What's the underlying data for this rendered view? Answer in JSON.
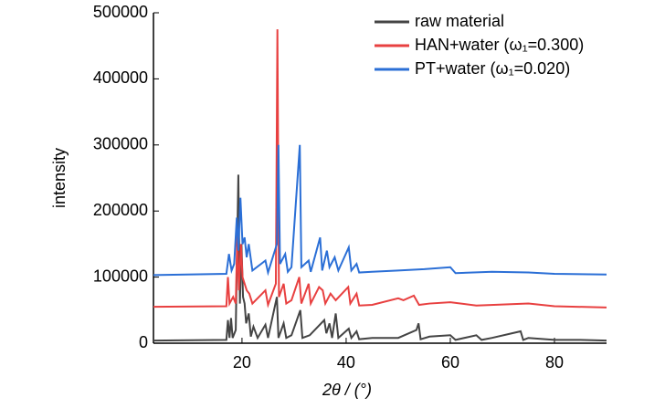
{
  "chart_data": {
    "type": "line",
    "xlabel": "2θ / (°)",
    "ylabel": "intensity",
    "xlim": [
      3,
      90
    ],
    "ylim": [
      0,
      500000
    ],
    "xticks": [
      20,
      40,
      60,
      80
    ],
    "yticks": [
      0,
      100000,
      200000,
      300000,
      400000,
      500000
    ],
    "legend": "upper right",
    "series": [
      {
        "name": "raw material",
        "color": "#444444",
        "x": [
          3,
          10,
          17,
          17.3,
          17.6,
          17.9,
          18.2,
          18.8,
          19.3,
          19.6,
          19.9,
          20.2,
          20.5,
          20.8,
          21.3,
          21.7,
          22.2,
          23,
          24.5,
          25,
          26.7,
          27,
          28,
          28.5,
          29.5,
          31.2,
          31.6,
          33,
          35.8,
          36.2,
          36.8,
          37.3,
          38,
          38.5,
          40.5,
          41,
          42,
          42.5,
          45,
          50,
          53.5,
          53.9,
          54.3,
          56,
          60,
          61,
          65,
          66,
          68,
          73.5,
          74,
          75,
          80,
          85,
          90
        ],
        "values": [
          4000,
          4500,
          5000,
          35000,
          8000,
          38000,
          8000,
          20000,
          255000,
          60000,
          150000,
          70000,
          60000,
          30000,
          45000,
          10000,
          25000,
          8000,
          28000,
          8000,
          70000,
          8000,
          30000,
          8000,
          12000,
          50000,
          8000,
          12000,
          35000,
          15000,
          30000,
          8000,
          45000,
          8000,
          22000,
          8000,
          18000,
          6000,
          8000,
          8000,
          20000,
          30000,
          6000,
          10000,
          12000,
          5000,
          12000,
          5000,
          8000,
          18000,
          5000,
          8000,
          5000,
          5000,
          4000
        ]
      },
      {
        "name": "HAN+water (ω₁=0.300)",
        "color": "#e84040",
        "x": [
          3,
          17,
          17.3,
          17.6,
          18.3,
          18.8,
          19.1,
          19.4,
          19.8,
          20.1,
          20.5,
          20.9,
          21.4,
          22,
          24.5,
          25,
          26.5,
          26.8,
          27.1,
          28,
          28.5,
          29.5,
          31,
          31.4,
          32.8,
          33.2,
          34.8,
          35.5,
          36,
          37,
          38,
          40.4,
          40.8,
          42,
          42.5,
          45,
          50,
          51,
          53,
          54,
          56,
          60,
          65,
          75,
          80,
          90
        ],
        "values": [
          55000,
          56000,
          100000,
          60000,
          70000,
          60000,
          165000,
          80000,
          150000,
          100000,
          90000,
          80000,
          75000,
          60000,
          80000,
          58000,
          90000,
          475000,
          70000,
          90000,
          60000,
          65000,
          100000,
          60000,
          90000,
          60000,
          85000,
          80000,
          60000,
          75000,
          65000,
          85000,
          60000,
          75000,
          57000,
          58000,
          68000,
          65000,
          72000,
          58000,
          60000,
          62000,
          57000,
          60000,
          56000,
          54000
        ]
      },
      {
        "name": "PT+water (ω₁=0.020)",
        "color": "#2b6fd6",
        "x": [
          3,
          17,
          17.5,
          18,
          18.5,
          19,
          19.3,
          19.7,
          20.1,
          20.5,
          20.9,
          21.3,
          22,
          24.5,
          25,
          26.7,
          27,
          27.3,
          28.3,
          28.8,
          29.5,
          31.1,
          31.4,
          32.8,
          33.2,
          35,
          35.4,
          36.3,
          36.8,
          37.8,
          38.5,
          40.5,
          41,
          42,
          42.5,
          45,
          50,
          55,
          60,
          61,
          68,
          75,
          80,
          90
        ],
        "values": [
          103000,
          105000,
          135000,
          110000,
          120000,
          190000,
          140000,
          220000,
          150000,
          160000,
          130000,
          150000,
          110000,
          125000,
          107000,
          150000,
          300000,
          120000,
          135000,
          108000,
          115000,
          300000,
          115000,
          125000,
          108000,
          160000,
          110000,
          140000,
          115000,
          130000,
          110000,
          145000,
          110000,
          120000,
          107000,
          108000,
          110000,
          112000,
          115000,
          106000,
          108000,
          107000,
          105000,
          104000
        ]
      }
    ]
  }
}
